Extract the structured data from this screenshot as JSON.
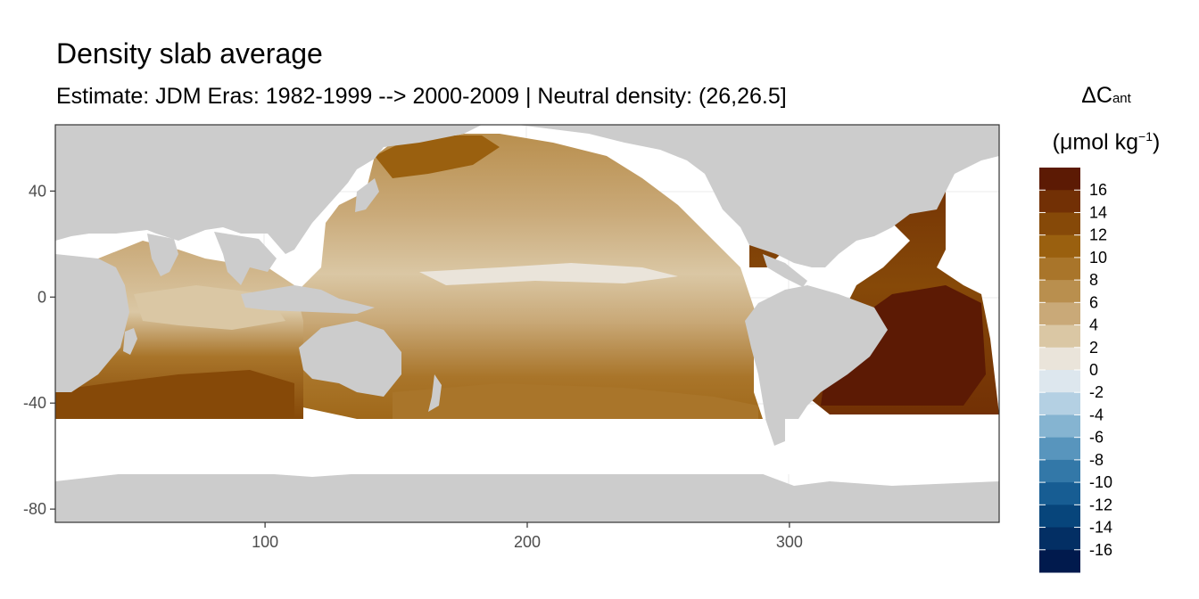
{
  "chart_data": {
    "type": "heatmap",
    "title": "Density slab average",
    "subtitle": "Estimate: JDM Eras: 1982-1999 --> 2000-2009 | Neutral density: (26,26.5]",
    "xlabel": "",
    "ylabel": "",
    "xlim": [
      20,
      380
    ],
    "ylim": [
      -85,
      65
    ],
    "x_ticks": [
      100,
      200,
      300
    ],
    "y_ticks": [
      40,
      0,
      -40,
      -80
    ],
    "grid": true,
    "legend": {
      "placement": "right",
      "title_main": "ΔC",
      "title_sub": "ant",
      "unit_prefix": "(μmol kg",
      "unit_sup": "−1",
      "unit_suffix": ")",
      "labels": [
        "16",
        "14",
        "12",
        "10",
        "8",
        "6",
        "4",
        "2",
        "0",
        "-2",
        "-4",
        "-6",
        "-8",
        "-10",
        "-12",
        "-14",
        "-16"
      ],
      "colors": [
        "#5c1a04",
        "#723005",
        "#864908",
        "#9a600f",
        "#a9752a",
        "#b98f4e",
        "#c9a978",
        "#dac7a4",
        "#eae4da",
        "#dde7ee",
        "#b4d0e3",
        "#85b4d1",
        "#5895bd",
        "#3378a8",
        "#175d93",
        "#07457b",
        "#032f64",
        "#011a4d"
      ]
    },
    "land_color": "#cccccc"
  }
}
